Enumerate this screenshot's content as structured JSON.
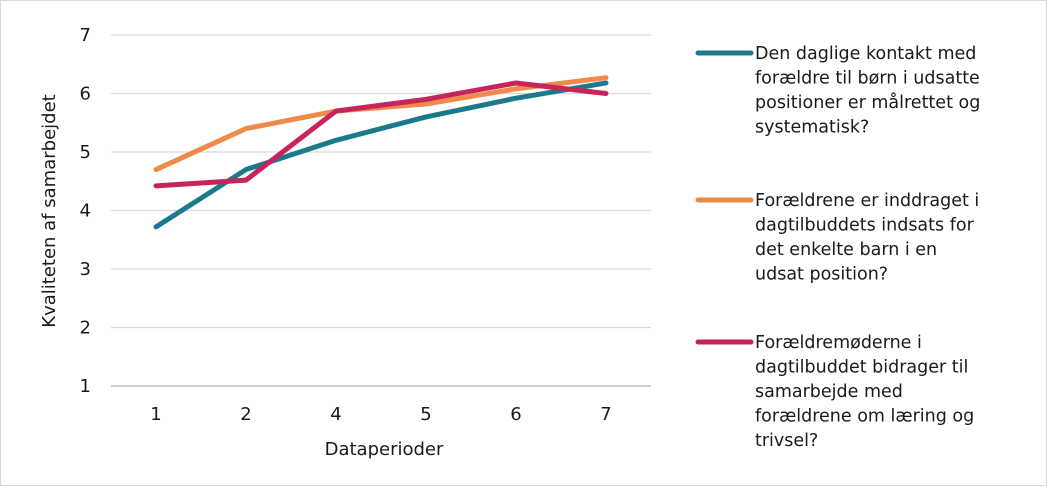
{
  "chart_data": {
    "type": "line",
    "xlabel": "Dataperioder",
    "ylabel": "Kvaliteten af samarbejdet",
    "categories": [
      "1",
      "2",
      "4",
      "5",
      "6",
      "7"
    ],
    "y_ticks": [
      "1",
      "2",
      "3",
      "4",
      "5",
      "6",
      "7"
    ],
    "ylim": [
      1,
      7
    ],
    "grid": "horizontal",
    "legend_position": "right",
    "series": [
      {
        "name": "Den daglige kontakt med forældre til børn i udsatte positioner er målrettet og systematisk?",
        "legend_lines": [
          "Den daglige kontakt med",
          "forældre til børn i udsatte",
          "positioner er målrettet og",
          "systematisk?"
        ],
        "color": "#1a7a8c",
        "values": [
          3.72,
          4.7,
          5.2,
          5.6,
          5.92,
          6.18
        ]
      },
      {
        "name": "Forældrene er inddraget i dagtilbuddets indsats for det enkelte barn i en udsat position?",
        "legend_lines": [
          "Forældrene er inddraget i",
          "dagtilbuddets indsats for",
          "det enkelte barn i en",
          "udsat position?"
        ],
        "color": "#ee8a4a",
        "values": [
          4.7,
          5.4,
          5.7,
          5.82,
          6.08,
          6.27
        ]
      },
      {
        "name": "Forældremøderne i dagtilbuddet bidrager til samarbejde med forældrene om læring og trivsel?",
        "legend_lines": [
          "Forældremøderne i",
          "dagtilbuddet bidrager til",
          "samarbejde med",
          "forældrene om læring og",
          "trivsel?"
        ],
        "color": "#c8245a",
        "values": [
          4.42,
          4.52,
          5.7,
          5.9,
          6.18,
          6.0
        ]
      }
    ]
  }
}
